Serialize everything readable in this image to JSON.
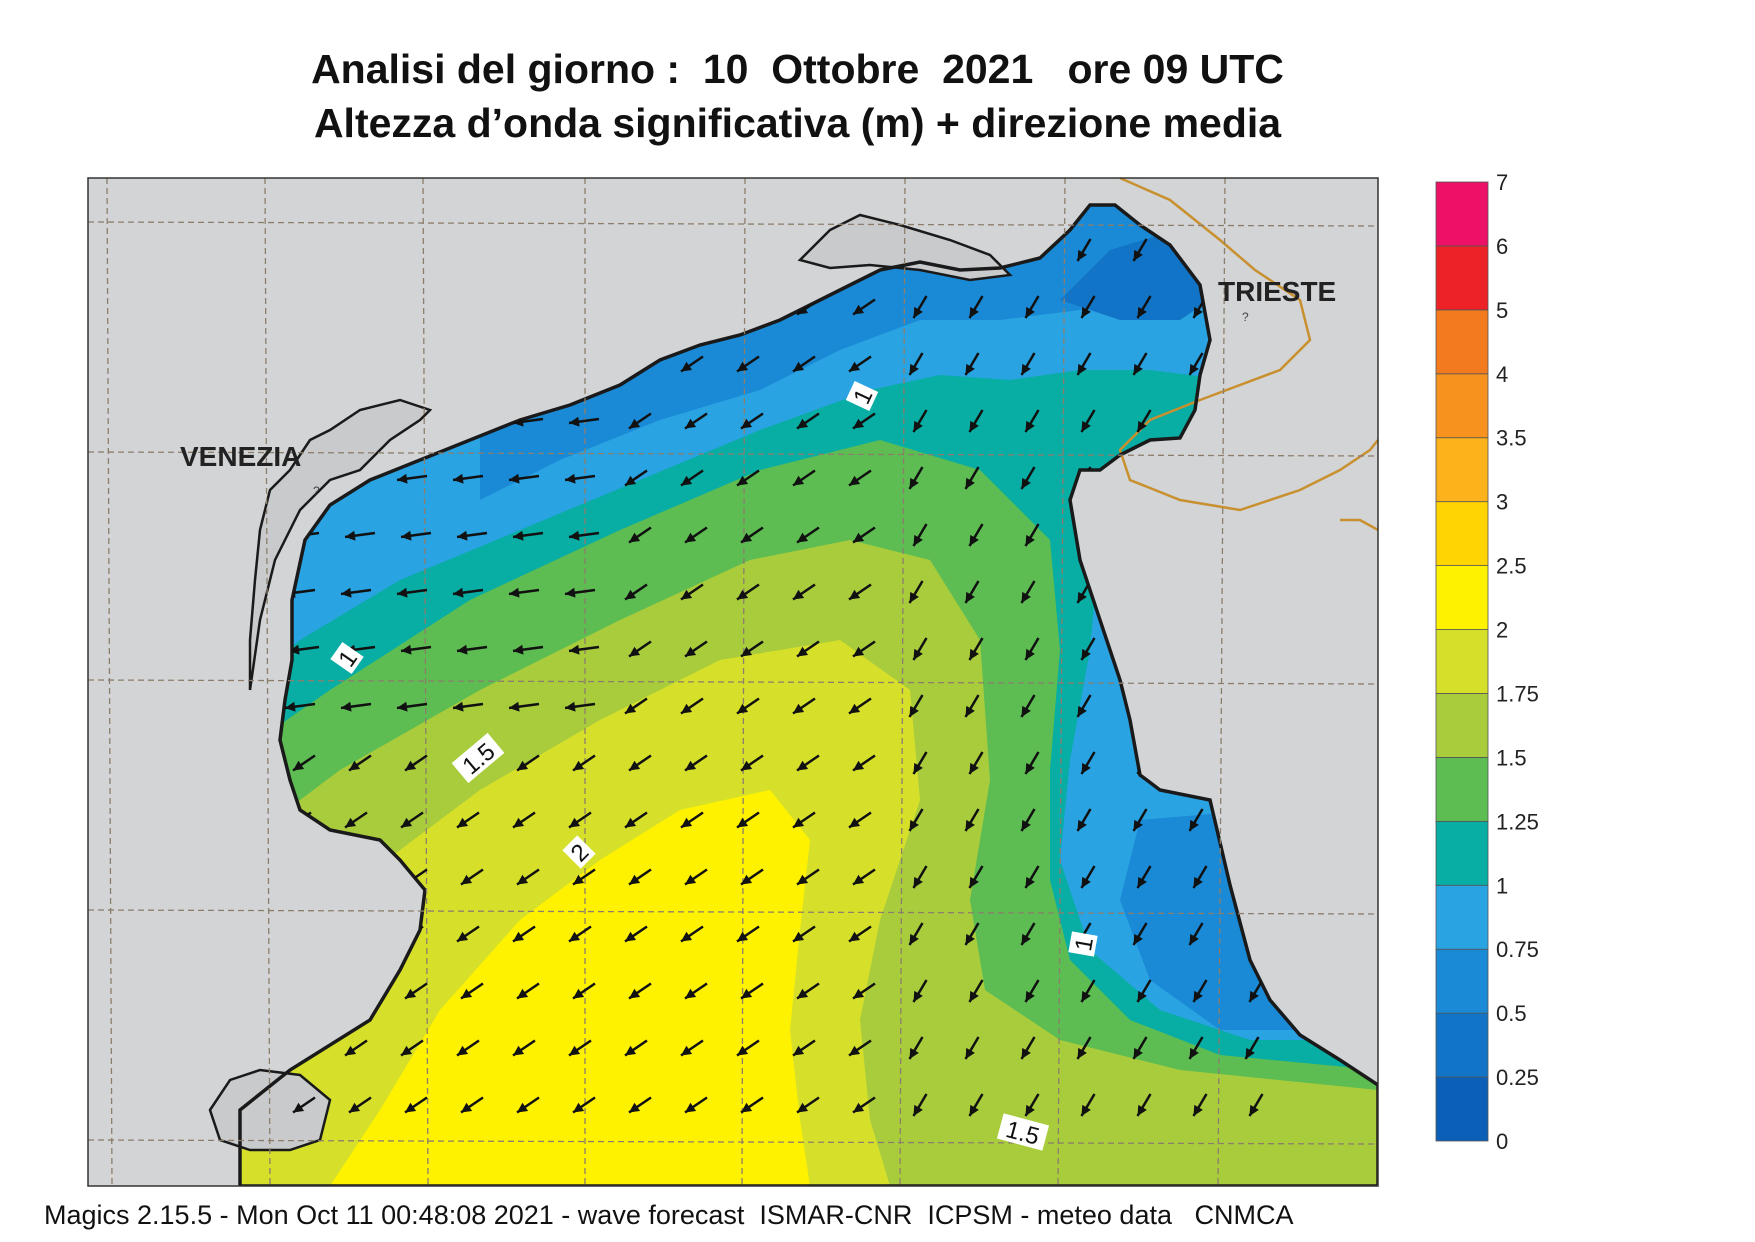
{
  "title_line1": "Analisi del giorno :  10  Ottobre  2021   ore 09 UTC",
  "title_line2": "Altezza d’onda significativa (m) + direzione media",
  "cities": [
    {
      "name": "VENEZIA"
    },
    {
      "name": "TRIESTE"
    }
  ],
  "city_marker": "?",
  "contour_labels": [
    "1",
    "1",
    "1",
    "1.5",
    "1.5",
    "2"
  ],
  "legend": {
    "ticks": [
      "0",
      "0.25",
      "0.5",
      "0.75",
      "1",
      "1.25",
      "1.5",
      "1.75",
      "2",
      "2.5",
      "3",
      "3.5",
      "4",
      "5",
      "6",
      "7"
    ],
    "colors": [
      "#0c5fb7",
      "#1274c6",
      "#1a8ad6",
      "#2aa3e3",
      "#08ada4",
      "#5dbd52",
      "#a9cc3c",
      "#d6e02a",
      "#fff200",
      "#ffd400",
      "#fbb21b",
      "#f7921f",
      "#f47a20",
      "#ec2227",
      "#ec1166"
    ]
  },
  "colors": {
    "land": "#d3d4d6",
    "grid": "#8c7e6c",
    "coast": "#1a1a1a",
    "border": "#c8902e",
    "arrow": "#111111"
  },
  "wave_direction": "SW",
  "footer": "Magics 2.15.5 - Mon Oct 11 00:48:08 2021 - wave forecast  ISMAR-CNR  ICPSM - meteo data   CNMCA"
}
